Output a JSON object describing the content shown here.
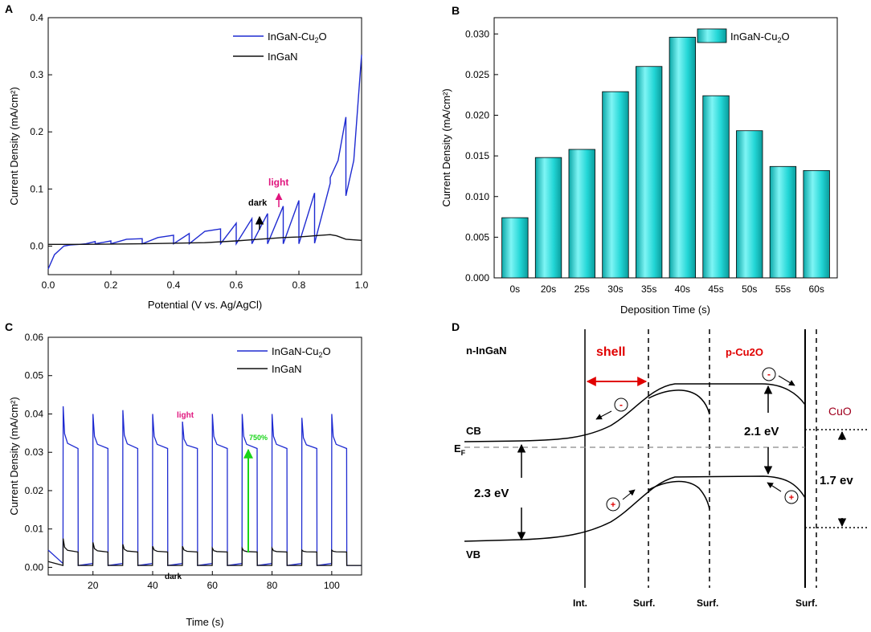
{
  "chart_data": [
    {
      "panel": "A",
      "type": "line",
      "xlabel": "Potential (V vs. Ag/AgCl)",
      "ylabel": "Current Density (mA/cm²)",
      "xlim": [
        0.0,
        1.0
      ],
      "ylim": [
        -0.05,
        0.4
      ],
      "xticks": [
        "0.0",
        "0.2",
        "0.4",
        "0.6",
        "0.8",
        "1.0"
      ],
      "yticks": [
        "0.0",
        "0.1",
        "0.2",
        "0.3",
        "0.4"
      ],
      "legend": {
        "position": "top-right",
        "entries": [
          "InGaN-Cu2O",
          "InGaN"
        ]
      },
      "series": [
        {
          "name": "InGaN-Cu2O",
          "color": "#1f2bd1",
          "x": [
            0.0,
            0.02,
            0.05,
            0.07,
            0.1,
            0.12,
            0.15,
            0.15,
            0.2,
            0.2,
            0.25,
            0.3,
            0.3,
            0.35,
            0.4,
            0.4,
            0.45,
            0.45,
            0.5,
            0.55,
            0.55,
            0.6,
            0.6,
            0.65,
            0.65,
            0.7,
            0.7,
            0.75,
            0.75,
            0.8,
            0.8,
            0.85,
            0.85,
            0.9,
            0.9,
            0.925,
            0.95,
            0.95,
            0.975,
            1.0
          ],
          "y": [
            -0.04,
            -0.015,
            0.0,
            0.002,
            0.003,
            0.004,
            0.008,
            0.004,
            0.009,
            0.004,
            0.012,
            0.013,
            0.004,
            0.015,
            0.019,
            0.004,
            0.022,
            0.004,
            0.026,
            0.03,
            0.004,
            0.04,
            0.004,
            0.048,
            0.004,
            0.057,
            0.004,
            0.07,
            0.004,
            0.08,
            0.004,
            0.093,
            0.005,
            0.11,
            0.12,
            0.15,
            0.226,
            0.088,
            0.15,
            0.335
          ]
        },
        {
          "name": "InGaN",
          "color": "#111111",
          "x": [
            0.0,
            0.1,
            0.3,
            0.5,
            0.6,
            0.65,
            0.7,
            0.75,
            0.8,
            0.85,
            0.9,
            0.92,
            0.95,
            1.0
          ],
          "y": [
            0.003,
            0.003,
            0.004,
            0.006,
            0.009,
            0.011,
            0.013,
            0.015,
            0.016,
            0.018,
            0.02,
            0.018,
            0.012,
            0.01
          ]
        }
      ],
      "annotations": [
        {
          "text": "light",
          "color": "#e0157e"
        },
        {
          "text": "dark",
          "color": "#000000"
        }
      ]
    },
    {
      "panel": "B",
      "type": "bar",
      "xlabel": "Deposition Time (s)",
      "ylabel": "Current Density (mA/cm²)",
      "categories": [
        "0s",
        "20s",
        "25s",
        "30s",
        "35s",
        "40s",
        "45s",
        "50s",
        "55s",
        "60s"
      ],
      "values": [
        0.0074,
        0.0148,
        0.0158,
        0.0229,
        0.026,
        0.0296,
        0.0224,
        0.0181,
        0.0137,
        0.0132
      ],
      "ylim": [
        0.0,
        0.032
      ],
      "yticks": [
        "0.000",
        "0.005",
        "0.010",
        "0.015",
        "0.020",
        "0.025",
        "0.030"
      ],
      "bar_color": "#22d6d6",
      "legend": {
        "position": "top-right",
        "entries": [
          "InGaN-Cu2O"
        ]
      }
    },
    {
      "panel": "C",
      "type": "line",
      "xlabel": "Time (s)",
      "ylabel": "Current Density (mA/cm²)",
      "xlim": [
        5,
        110
      ],
      "ylim": [
        -0.002,
        0.06
      ],
      "xticks": [
        "20",
        "40",
        "60",
        "80",
        "100"
      ],
      "yticks": [
        "0.00",
        "0.01",
        "0.02",
        "0.03",
        "0.04",
        "0.05",
        "0.06"
      ],
      "legend": {
        "position": "top-right",
        "entries": [
          "InGaN-Cu2O",
          "InGaN"
        ]
      },
      "light_periods": [
        [
          10,
          15
        ],
        [
          20,
          25
        ],
        [
          30,
          35
        ],
        [
          40,
          45
        ],
        [
          50,
          55
        ],
        [
          60,
          65
        ],
        [
          70,
          75
        ],
        [
          80,
          85
        ],
        [
          90,
          95
        ],
        [
          100,
          105
        ]
      ],
      "series": [
        {
          "name": "InGaN-Cu2O",
          "color": "#1f2bd1",
          "dark_level": 0.0005,
          "peaks": [
            0.042,
            0.04,
            0.041,
            0.04,
            0.038,
            0.04,
            0.04,
            0.04,
            0.039,
            0.04
          ],
          "plateau": 0.031
        },
        {
          "name": "InGaN",
          "color": "#111111",
          "dark_level": 0.0005,
          "peaks": [
            0.0075,
            0.0065,
            0.006,
            0.0055,
            0.0055,
            0.005,
            0.005,
            0.005,
            0.0045,
            0.0045
          ],
          "plateau": 0.004
        }
      ],
      "annotations": [
        {
          "text": "light",
          "color": "#e0157e"
        },
        {
          "text": "dark",
          "color": "#000000"
        },
        {
          "text": "750%",
          "color": "#19d419"
        }
      ]
    }
  ],
  "diagram_d": {
    "labels": {
      "n_ingan": "n-InGaN",
      "shell": "shell",
      "p_cu2o": "p-Cu2O",
      "cuo": "CuO",
      "cb": "CB",
      "vb": "VB",
      "ef": "E",
      "ef_sub": "F",
      "gap_ingan": "2.3 eV",
      "gap_cu2o": "2.1 eV",
      "gap_cuo": "1.7 ev",
      "int": "Int.",
      "surf": "Surf.",
      "minus": "-",
      "plus": "+"
    },
    "colors": {
      "highlight": "#e00000",
      "cuo": "#a0001e"
    }
  },
  "panel_letters": [
    "A",
    "B",
    "C",
    "D"
  ],
  "subscript_two": "2",
  "legend_text": {
    "compound": "InGaN-Cu",
    "oxygen": "O",
    "bare": "InGaN"
  }
}
